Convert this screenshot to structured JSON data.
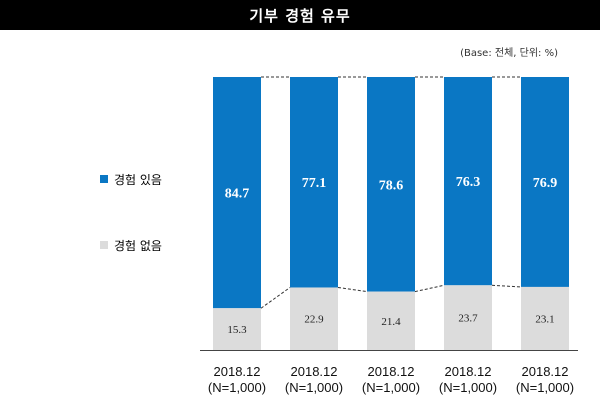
{
  "title": "기부 경험 유무",
  "base_note": "(Base: 전체, 단위: %)",
  "legend": [
    {
      "label": "경험 있음",
      "color": "#0A77C4"
    },
    {
      "label": "경험 없음",
      "color": "#DCDCDC"
    }
  ],
  "chart_data": {
    "type": "bar",
    "stacked": true,
    "categories": [
      [
        "2018.12",
        "(N=1,000)"
      ],
      [
        "2018.12",
        "(N=1,000)"
      ],
      [
        "2018.12",
        "(N=1,000)"
      ],
      [
        "2018.12",
        "(N=1,000)"
      ],
      [
        "2018.12",
        "(N=1,000)"
      ]
    ],
    "series": [
      {
        "name": "경험 있음",
        "color": "#0A77C4",
        "values": [
          84.7,
          77.1,
          78.6,
          76.3,
          76.9
        ],
        "labels": [
          "84.7",
          "77.1",
          "78.6",
          "76.3",
          "76.9"
        ]
      },
      {
        "name": "경험 없음",
        "color": "#DCDCDC",
        "values": [
          15.3,
          22.9,
          21.4,
          23.7,
          23.1
        ],
        "labels": [
          "15.3",
          "22.9",
          "21.4",
          "23.7",
          "23.1"
        ]
      }
    ],
    "ylim": [
      0,
      100
    ],
    "grid": false
  }
}
